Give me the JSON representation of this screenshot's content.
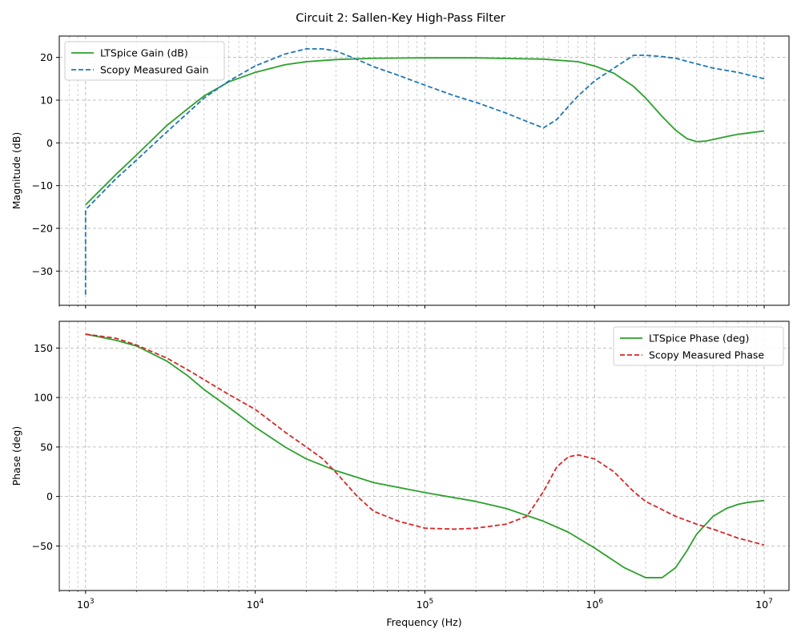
{
  "title": "Circuit 2: Sallen-Key High-Pass Filter",
  "chart_data": [
    {
      "type": "line",
      "xscale": "log",
      "xlim": [
        700,
        14000000
      ],
      "ylim": [
        -38,
        25
      ],
      "ylabel": "Magnitude (dB)",
      "xlabel": "",
      "yticks": [
        -30,
        -20,
        -10,
        0,
        10,
        20
      ],
      "grid": true,
      "legend_position": "top-left",
      "series": [
        {
          "name": "LTSpice Gain (dB)",
          "color": "#2ca02c",
          "style": "solid",
          "x": [
            1000,
            1500,
            2000,
            3000,
            4000,
            5000,
            7000,
            10000,
            15000,
            20000,
            30000,
            50000,
            100000,
            200000,
            500000,
            800000,
            1000000,
            1300000,
            1700000,
            2000000,
            2500000,
            3000000,
            3500000,
            4000000,
            4500000,
            5000000,
            6000000,
            7000000,
            8000000,
            10000000
          ],
          "y": [
            -14.5,
            -7.5,
            -2.8,
            4.0,
            8.0,
            11.0,
            14.3,
            16.5,
            18.3,
            19.0,
            19.5,
            19.8,
            19.9,
            19.9,
            19.6,
            19.0,
            18.0,
            16.3,
            13.2,
            10.5,
            6.2,
            3.0,
            1.0,
            0.3,
            0.4,
            0.8,
            1.5,
            2.0,
            2.3,
            2.8
          ]
        },
        {
          "name": "Scopy Measured Gain",
          "color": "#1f77b4",
          "style": "dashed",
          "x": [
            1000,
            1000,
            1020,
            1500,
            2000,
            3000,
            4000,
            5000,
            7000,
            10000,
            15000,
            20000,
            25000,
            30000,
            40000,
            50000,
            70000,
            100000,
            150000,
            200000,
            300000,
            400000,
            500000,
            600000,
            700000,
            800000,
            1000000,
            1300000,
            1700000,
            2000000,
            2500000,
            3000000,
            4000000,
            5000000,
            7000000,
            10000000
          ],
          "y": [
            -35.5,
            -16.0,
            -15.3,
            -8.5,
            -4.0,
            2.5,
            7.0,
            10.5,
            14.5,
            18.0,
            20.8,
            22.0,
            22.0,
            21.5,
            19.5,
            17.8,
            15.8,
            13.5,
            11.0,
            9.5,
            7.0,
            5.0,
            3.5,
            5.5,
            8.5,
            11.0,
            14.5,
            17.5,
            20.5,
            20.5,
            20.2,
            19.8,
            18.5,
            17.5,
            16.5,
            15.0
          ]
        }
      ]
    },
    {
      "type": "line",
      "xscale": "log",
      "xlim": [
        700,
        14000000
      ],
      "ylim": [
        -95,
        177
      ],
      "ylabel": "Phase (deg)",
      "xlabel": "Frequency (Hz)",
      "yticks": [
        -50,
        0,
        50,
        100,
        150
      ],
      "grid": true,
      "legend_position": "top-right",
      "series": [
        {
          "name": "LTSpice Phase (deg)",
          "color": "#2ca02c",
          "style": "solid",
          "x": [
            1000,
            1500,
            2000,
            3000,
            4000,
            5000,
            7000,
            10000,
            15000,
            20000,
            30000,
            50000,
            100000,
            200000,
            300000,
            500000,
            700000,
            1000000,
            1500000,
            2000000,
            2500000,
            3000000,
            3500000,
            4000000,
            5000000,
            6000000,
            7000000,
            8000000,
            10000000
          ],
          "y": [
            164,
            158,
            152,
            137,
            122,
            108,
            90,
            70,
            50,
            38,
            26,
            14,
            4,
            -5,
            -12,
            -25,
            -36,
            -52,
            -72,
            -82,
            -82,
            -72,
            -55,
            -38,
            -20,
            -12,
            -8,
            -6,
            -4
          ]
        },
        {
          "name": "Scopy Measured Phase",
          "color": "#d62728",
          "style": "dashed",
          "x": [
            1000,
            1500,
            2000,
            3000,
            4000,
            5000,
            7000,
            10000,
            15000,
            20000,
            25000,
            30000,
            40000,
            50000,
            70000,
            100000,
            150000,
            200000,
            300000,
            400000,
            500000,
            600000,
            700000,
            800000,
            1000000,
            1300000,
            1700000,
            2000000,
            3000000,
            4000000,
            5000000,
            7000000,
            10000000
          ],
          "y": [
            164,
            160,
            153,
            140,
            128,
            118,
            103,
            88,
            65,
            50,
            38,
            24,
            0,
            -15,
            -25,
            -32,
            -33,
            -32,
            -28,
            -20,
            5,
            30,
            40,
            42,
            38,
            25,
            5,
            -5,
            -20,
            -28,
            -33,
            -42,
            -49
          ]
        }
      ]
    }
  ]
}
